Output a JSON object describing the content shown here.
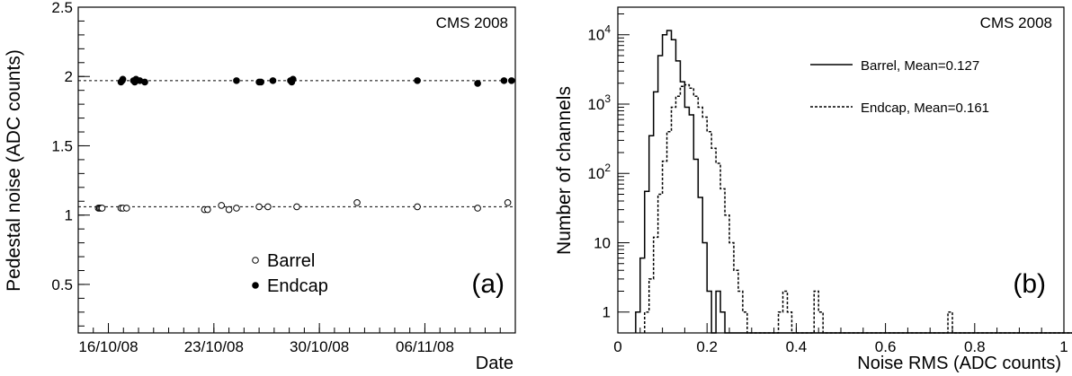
{
  "chart_data": [
    {
      "panel_label": "(a)",
      "type": "scatter",
      "watermark": "CMS 2008",
      "ylabel": "Pedestal noise (ADC counts)",
      "xlabel": "Date",
      "ylim": [
        0.15,
        2.5
      ],
      "xlim": [
        "2008-10-14",
        "2008-11-12"
      ],
      "x_ticks": [
        {
          "date": "2008-10-16",
          "label": "16/10/08"
        },
        {
          "date": "2008-10-23",
          "label": "23/10/08"
        },
        {
          "date": "2008-10-30",
          "label": "30/10/08"
        },
        {
          "date": "2008-11-06",
          "label": "06/11/08"
        }
      ],
      "y_ticks": [
        {
          "value": 0.5,
          "label": "0.5"
        },
        {
          "value": 1,
          "label": "1"
        },
        {
          "value": 1.5,
          "label": "1.5"
        },
        {
          "value": 2,
          "label": "2"
        },
        {
          "value": 2.5,
          "label": "2.5"
        }
      ],
      "reference_lines": [
        1.06,
        1.97
      ],
      "legend": {
        "placement": "bottom-center"
      },
      "series": [
        {
          "name": "Barrel",
          "marker": "open-circle",
          "x": [
            "2008-10-15T08:00",
            "2008-10-15T10:00",
            "2008-10-15T12:00",
            "2008-10-15T14:00",
            "2008-10-16T20:00",
            "2008-10-16T23:00",
            "2008-10-17T05:00",
            "2008-10-22T09:00",
            "2008-10-22T14:00",
            "2008-10-23T12:00",
            "2008-10-24T00:00",
            "2008-10-24T12:00",
            "2008-10-26T00:00",
            "2008-10-26T14:00",
            "2008-10-28T12:00",
            "2008-11-01T12:00",
            "2008-11-05T12:00",
            "2008-11-09T12:00",
            "2008-11-11T12:00"
          ],
          "y": [
            1.05,
            1.05,
            1.05,
            1.05,
            1.05,
            1.05,
            1.05,
            1.04,
            1.04,
            1.07,
            1.04,
            1.05,
            1.06,
            1.06,
            1.06,
            1.09,
            1.06,
            1.05,
            1.09
          ]
        },
        {
          "name": "Endcap",
          "marker": "filled-circle",
          "x": [
            "2008-10-16T20:00",
            "2008-10-16T22:00",
            "2008-10-16T23:00",
            "2008-10-17T16:00",
            "2008-10-17T18:00",
            "2008-10-17T20:00",
            "2008-10-18T02:00",
            "2008-10-18T10:00",
            "2008-10-24T12:00",
            "2008-10-26T00:00",
            "2008-10-26T03:00",
            "2008-10-26T22:00",
            "2008-10-28T02:00",
            "2008-10-28T04:00",
            "2008-10-28T06:00",
            "2008-11-05T12:00",
            "2008-11-09T12:00",
            "2008-11-11T06:00",
            "2008-11-11T18:00"
          ],
          "y": [
            1.96,
            1.97,
            1.98,
            1.97,
            1.96,
            1.98,
            1.97,
            1.96,
            1.97,
            1.96,
            1.96,
            1.97,
            1.97,
            1.96,
            1.98,
            1.97,
            1.95,
            1.97,
            1.97
          ]
        }
      ]
    },
    {
      "panel_label": "(b)",
      "type": "histogram",
      "watermark": "CMS 2008",
      "xlabel": "Noise RMS (ADC counts)",
      "ylabel": "Number of channels",
      "xlim": [
        0,
        1
      ],
      "ylim": [
        0.5,
        25000
      ],
      "yscale": "log",
      "x_ticks": [
        {
          "value": 0,
          "label": "0"
        },
        {
          "value": 0.2,
          "label": "0.2"
        },
        {
          "value": 0.4,
          "label": "0.4"
        },
        {
          "value": 0.6,
          "label": "0.6"
        },
        {
          "value": 0.8,
          "label": "0.8"
        },
        {
          "value": 1,
          "label": "1"
        }
      ],
      "y_ticks": [
        {
          "value": 1,
          "label": "1"
        },
        {
          "value": 10,
          "label": "10"
        },
        {
          "value": 100,
          "label": "10",
          "sup": "2"
        },
        {
          "value": 1000,
          "label": "10",
          "sup": "3"
        },
        {
          "value": 10000,
          "label": "10",
          "sup": "4"
        }
      ],
      "bin_width": 0.01,
      "legend": {
        "placement": "top-right"
      },
      "series": [
        {
          "name": "Barrel, Mean=0.127",
          "style": "solid",
          "bins_start": 0.04,
          "counts": [
            1,
            6,
            55,
            350,
            1500,
            5000,
            10000,
            11500,
            8500,
            4200,
            2100,
            900,
            700,
            160,
            45,
            10,
            2,
            0,
            2,
            1,
            0,
            0,
            0,
            0,
            0,
            0,
            0,
            0,
            0,
            0,
            0,
            0,
            0,
            0,
            0,
            0,
            0,
            0,
            0,
            0,
            0,
            0,
            0,
            0,
            0,
            0,
            0,
            0,
            0,
            0,
            0,
            0,
            0,
            0,
            0,
            0,
            0,
            0,
            0,
            0,
            0,
            0,
            0,
            0,
            0,
            0,
            0,
            0,
            0,
            0,
            0,
            0,
            0,
            0,
            0,
            0,
            0,
            0,
            0,
            0,
            0,
            0,
            0,
            0,
            0,
            0,
            0,
            0,
            0,
            0,
            0,
            0,
            0,
            0,
            0,
            0,
            0,
            0,
            0
          ]
        },
        {
          "name": "Endcap, Mean=0.161",
          "style": "dashed",
          "bins_start": 0.06,
          "counts": [
            1,
            3,
            12,
            50,
            150,
            400,
            900,
            1300,
            1800,
            1900,
            1700,
            1300,
            900,
            650,
            400,
            230,
            140,
            60,
            25,
            10,
            4,
            2,
            1,
            0,
            0,
            0,
            0,
            0,
            0,
            0,
            1,
            2,
            1,
            0,
            0,
            0,
            0,
            0,
            2,
            1,
            0,
            0,
            0,
            0,
            0,
            0,
            0,
            0,
            0,
            0,
            0,
            0,
            0,
            0,
            0,
            0,
            0,
            0,
            0,
            0,
            0,
            0,
            0,
            0,
            0,
            0,
            0,
            0,
            1,
            0,
            0,
            0,
            0,
            0,
            0,
            0,
            0,
            0,
            0,
            0,
            0,
            0,
            0,
            0,
            0,
            0,
            0,
            0,
            0,
            0,
            0,
            0,
            0,
            0,
            0,
            0,
            0,
            0
          ]
        }
      ]
    }
  ]
}
